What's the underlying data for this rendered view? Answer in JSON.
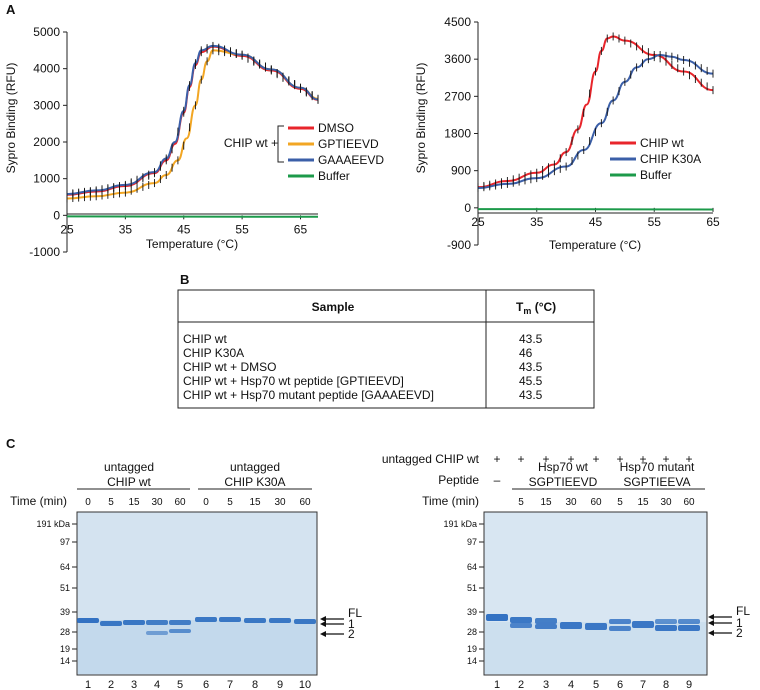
{
  "panel_labels": {
    "a": "A",
    "b": "B",
    "c": "C"
  },
  "chart_data": [
    {
      "type": "line",
      "xlabel": "Temperature (°C)",
      "ylabel": "Sypro Binding (RFU)",
      "xlim": [
        25,
        68
      ],
      "ylim": [
        -1000,
        5000
      ],
      "x_ticks": [
        "25",
        "35",
        "45",
        "55",
        "65"
      ],
      "y_ticks": [
        "-1000",
        "0",
        "1000",
        "2000",
        "3000",
        "4000",
        "5000"
      ],
      "legend_prefix": "CHIP wt +",
      "legend_placement": "right",
      "series": [
        {
          "name": "DMSO",
          "color": "#e8252b",
          "x": [
            25,
            30,
            35,
            40,
            42,
            43.5,
            45,
            46,
            47,
            48,
            50,
            55,
            60,
            65,
            68
          ],
          "y": [
            560,
            650,
            800,
            1150,
            1500,
            1950,
            2800,
            3500,
            4100,
            4450,
            4600,
            4350,
            3950,
            3450,
            3150
          ]
        },
        {
          "name": "GPTIEEVD",
          "color": "#f2a623",
          "x": [
            25,
            30,
            35,
            40,
            42,
            44,
            45.5,
            47,
            48,
            49,
            50,
            55,
            60,
            65,
            68
          ],
          "y": [
            460,
            520,
            620,
            880,
            1100,
            1500,
            2100,
            3000,
            3700,
            4200,
            4500,
            4380,
            3980,
            3480,
            3180
          ]
        },
        {
          "name": "GAAAEEVD",
          "color": "#3b5fa8",
          "x": [
            25,
            30,
            35,
            40,
            42,
            43.5,
            45,
            46,
            47,
            48,
            50,
            55,
            60,
            65,
            68
          ],
          "y": [
            580,
            680,
            830,
            1180,
            1550,
            2000,
            2850,
            3550,
            4150,
            4500,
            4620,
            4380,
            3980,
            3480,
            3160
          ]
        },
        {
          "name": "Buffer",
          "color": "#1c9a4a",
          "x": [
            25,
            68
          ],
          "y": [
            -30,
            -40
          ]
        }
      ]
    },
    {
      "type": "line",
      "xlabel": "Temperature (°C)",
      "ylabel": "Sypro Binding (RFU)",
      "xlim": [
        25,
        65
      ],
      "ylim": [
        -900,
        4500
      ],
      "x_ticks": [
        "25",
        "35",
        "45",
        "55",
        "65"
      ],
      "y_ticks": [
        "-900",
        "0",
        "900",
        "1800",
        "2700",
        "3600",
        "4500"
      ],
      "legend_placement": "bottom-right",
      "series": [
        {
          "name": "CHIP wt",
          "color": "#e8252b",
          "x": [
            25,
            30,
            35,
            38,
            40,
            42,
            43.5,
            45,
            46,
            47,
            48,
            50,
            55,
            60,
            65
          ],
          "y": [
            500,
            650,
            850,
            1050,
            1350,
            1900,
            2500,
            3300,
            3800,
            4100,
            4150,
            4050,
            3700,
            3300,
            2850
          ]
        },
        {
          "name": "CHIP K30A",
          "color": "#3b5fa8",
          "x": [
            25,
            30,
            35,
            40,
            43,
            46,
            48,
            50,
            52,
            54,
            56,
            58,
            60,
            65
          ],
          "y": [
            480,
            580,
            720,
            1000,
            1400,
            2050,
            2600,
            3050,
            3400,
            3600,
            3700,
            3660,
            3580,
            3250
          ]
        },
        {
          "name": "Buffer",
          "color": "#1c9a4a",
          "x": [
            25,
            65
          ],
          "y": [
            -30,
            -40
          ]
        }
      ]
    }
  ],
  "table": {
    "col_sample": "Sample",
    "col_tm_main": "T",
    "col_tm_sub": "m",
    "col_tm_unit": " (°C)",
    "rows": [
      {
        "sample": "CHIP wt",
        "tm": "43.5"
      },
      {
        "sample": "CHIP K30A",
        "tm": "46"
      },
      {
        "sample": "CHIP wt + DMSO",
        "tm": "43.5"
      },
      {
        "sample": "CHIP wt + Hsp70 wt peptide [GPTIEEVD]",
        "tm": "45.5"
      },
      {
        "sample": "CHIP wt + Hsp70 mutant peptide [GAAAEEVD]",
        "tm": "43.5"
      }
    ]
  },
  "gel_left": {
    "group1_line1": "untagged",
    "group1_line2": "CHIP wt",
    "group2_line1": "untagged",
    "group2_line2": "CHIP K30A",
    "time_label": "Time (min)",
    "times": [
      "0",
      "5",
      "15",
      "30",
      "60",
      "0",
      "5",
      "15",
      "30",
      "60"
    ],
    "markers": [
      "191 kDa",
      "97",
      "64",
      "51",
      "39",
      "28",
      "19",
      "14"
    ],
    "lanes": [
      "1",
      "2",
      "3",
      "4",
      "5",
      "6",
      "7",
      "8",
      "9",
      "10"
    ],
    "arrows": [
      "FL",
      "1",
      "2"
    ]
  },
  "gel_right": {
    "untagged_label": "untagged CHIP wt",
    "plus": "+",
    "peptide_label": "Peptide",
    "dash": "–",
    "group1_line1": "Hsp70 wt",
    "group1_line2": "SGPTIEEVD",
    "group2_line1": "Hsp70 mutant",
    "group2_line2": "SGPTIEEVA",
    "time_label": "Time (min)",
    "times": [
      "5",
      "15",
      "30",
      "60",
      "5",
      "15",
      "30",
      "60"
    ],
    "markers": [
      "191 kDa",
      "97",
      "64",
      "51",
      "39",
      "28",
      "19",
      "14"
    ],
    "lanes": [
      "1",
      "2",
      "3",
      "4",
      "5",
      "6",
      "7",
      "8",
      "9"
    ],
    "arrows": [
      "FL",
      "1",
      "2"
    ]
  }
}
